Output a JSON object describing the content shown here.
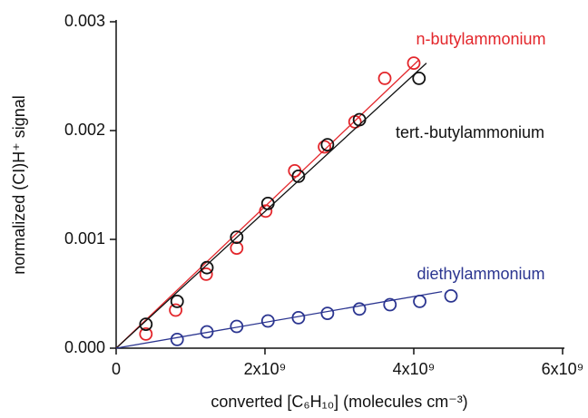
{
  "chart_data": {
    "type": "scatter",
    "x_label": "converted [C₆H₁₀]  (molecules cm⁻³)",
    "y_label": "normalized (CI)H⁺ signal",
    "xlim": [
      0,
      6000000000
    ],
    "ylim": [
      0,
      0.003
    ],
    "xticks": [
      0,
      {
        "value": 2000000000,
        "label": "2x10⁹"
      },
      {
        "value": 4000000000,
        "label": "4x10⁹"
      },
      {
        "value": 6000000000,
        "label": "6x10⁹"
      }
    ],
    "yticks": [
      {
        "value": 0,
        "label": "0.000"
      },
      {
        "value": 0.001,
        "label": "0.001"
      },
      {
        "value": 0.002,
        "label": "0.002"
      },
      {
        "value": 0.003,
        "label": "0.003"
      }
    ],
    "series": [
      {
        "name": "n-butylammonium",
        "color": "#e3262b",
        "x": [
          400000000,
          800000000,
          1210000000,
          1620000000,
          2010000000,
          2400000000,
          2800000000,
          3210000000,
          3610000000,
          4000000000
        ],
        "values": [
          0.00013,
          0.00035,
          0.00068,
          0.00092,
          0.00126,
          0.00163,
          0.00185,
          0.00208,
          0.00248,
          0.00262
        ],
        "fit": {
          "x": [
            0,
            4070000000
          ],
          "values": [
            0,
            0.00265
          ]
        }
      },
      {
        "name": "tert.-butylammonium",
        "color": "#111111",
        "x": [
          400000000,
          820000000,
          1220000000,
          1620000000,
          2040000000,
          2450000000,
          2840000000,
          3270000000,
          4070000000
        ],
        "values": [
          0.00022,
          0.00043,
          0.00074,
          0.00102,
          0.00133,
          0.00158,
          0.00187,
          0.0021,
          0.00248
        ],
        "fit": {
          "x": [
            0,
            4170000000
          ],
          "values": [
            0,
            0.00262
          ]
        }
      },
      {
        "name": "diethylammonium",
        "color": "#2b3590",
        "x": [
          820000000,
          1220000000,
          1620000000,
          2040000000,
          2450000000,
          2840000000,
          3270000000,
          3680000000,
          4080000000,
          4500000000
        ],
        "values": [
          8e-05,
          0.00015,
          0.0002,
          0.00025,
          0.00028,
          0.00032,
          0.00036,
          0.0004,
          0.00043,
          0.00048
        ],
        "fit": {
          "x": [
            0,
            4380000000
          ],
          "values": [
            0,
            0.00052
          ]
        }
      }
    ]
  }
}
